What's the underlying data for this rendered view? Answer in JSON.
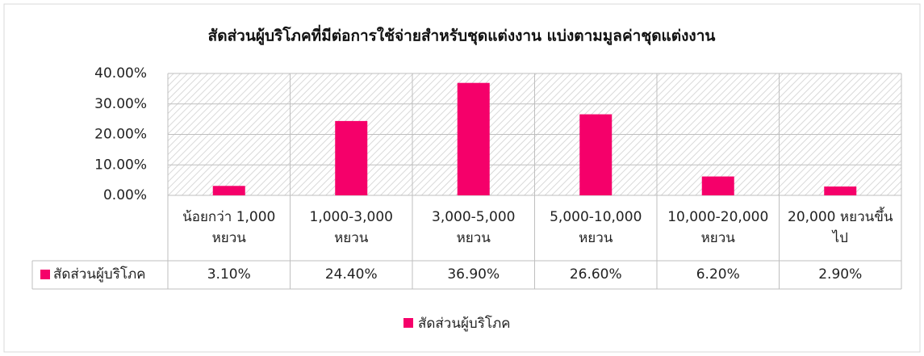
{
  "chart_data": {
    "type": "bar",
    "title": "สัดส่วนผู้บริโภคที่มีต่อการใช้จ่ายสำหรับชุดแต่งงาน แบ่งตามมูลค่าชุดแต่งงาน",
    "categories": [
      "น้อยกว่า 1,000 หยวน",
      "1,000-3,000 หยวน",
      "3,000-5,000 หยวน",
      "5,000-10,000 หยวน",
      "10,000-20,000 หยวน",
      "20,000 หยวนขึ้นไป"
    ],
    "series": [
      {
        "name": "สัดส่วนผู้บริโภค",
        "color": "#f5006a",
        "values": [
          3.1,
          24.4,
          36.9,
          26.6,
          6.2,
          2.9
        ],
        "value_labels": [
          "3.10%",
          "24.40%",
          "36.90%",
          "26.60%",
          "6.20%",
          "2.90%"
        ]
      }
    ],
    "ylim": [
      0,
      40
    ],
    "yticks": [
      {
        "value": 0,
        "label": "0.00%"
      },
      {
        "value": 10,
        "label": "10.00%"
      },
      {
        "value": 20,
        "label": "20.00%"
      },
      {
        "value": 30,
        "label": "30.00%"
      },
      {
        "value": 40,
        "label": "40.00%"
      }
    ],
    "grid": true,
    "legend": "bottom"
  }
}
